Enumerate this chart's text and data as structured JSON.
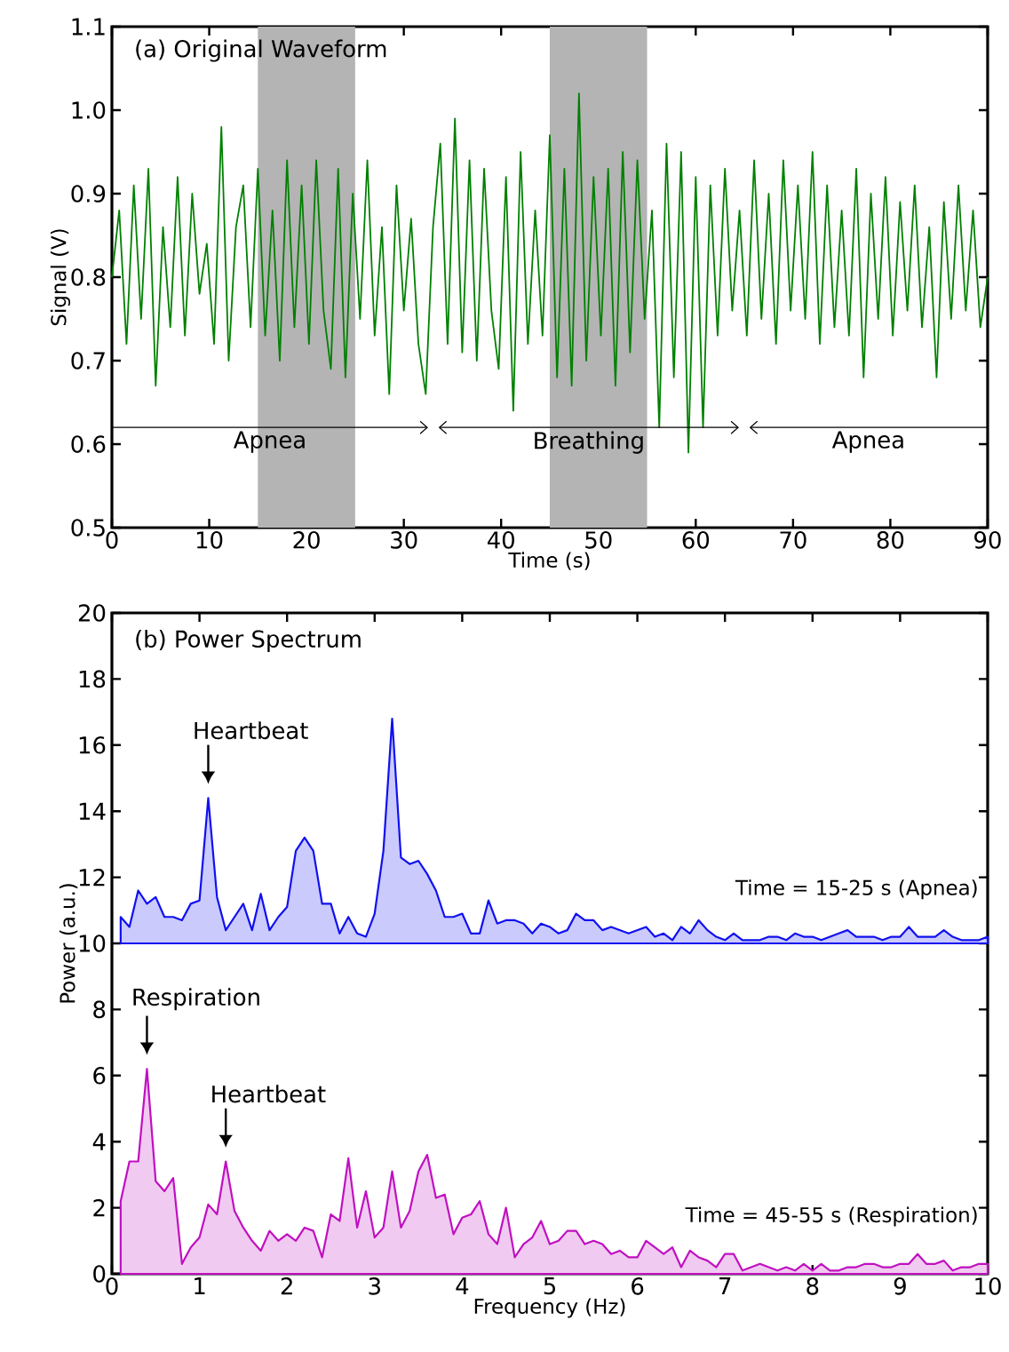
{
  "chart_data": [
    {
      "type": "line",
      "title": "(a) Original Waveform",
      "xlabel": "Time (s)",
      "ylabel": "Signal (V)",
      "x": [
        0,
        0.75,
        1.5,
        2.25,
        3,
        3.75,
        4.5,
        5.25,
        6,
        6.75,
        7.5,
        8.25,
        9,
        9.75,
        10.5,
        11.25,
        12,
        12.75,
        13.5,
        14.25,
        15,
        15.75,
        16.5,
        17.25,
        18,
        18.75,
        19.5,
        20.25,
        21,
        21.75,
        22.5,
        23.25,
        24,
        24.75,
        25.5,
        26.25,
        27,
        27.75,
        28.5,
        29.25,
        30,
        30.75,
        31.5,
        32.25,
        33,
        33.75,
        34.5,
        35.25,
        36,
        36.75,
        37.5,
        38.25,
        39,
        39.75,
        40.5,
        41.25,
        42,
        42.75,
        43.5,
        44.25,
        45,
        45.75,
        46.5,
        47.25,
        48,
        48.75,
        49.5,
        50.25,
        51,
        51.75,
        52.5,
        53.25,
        54,
        54.75,
        55.5,
        56.25,
        57,
        57.75,
        58.5,
        59.25,
        60,
        60.75,
        61.5,
        62.25,
        63,
        63.75,
        64.5,
        65.25,
        66,
        66.75,
        67.5,
        68.25,
        69,
        69.75,
        70.5,
        71.25,
        72,
        72.75,
        73.5,
        74.25,
        75,
        75.75,
        76.5,
        77.25,
        78,
        78.75,
        79.5,
        80.25,
        81,
        81.75,
        82.5,
        83.25,
        84,
        84.75,
        85.5,
        86.25,
        87,
        87.75,
        88.5,
        89.25,
        90
      ],
      "series": [
        {
          "color": "#008000",
          "values": [
            0.8,
            0.88,
            0.72,
            0.91,
            0.75,
            0.93,
            0.67,
            0.86,
            0.74,
            0.92,
            0.73,
            0.9,
            0.78,
            0.84,
            0.72,
            0.98,
            0.7,
            0.86,
            0.91,
            0.74,
            0.93,
            0.73,
            0.88,
            0.7,
            0.94,
            0.74,
            0.91,
            0.72,
            0.94,
            0.76,
            0.69,
            0.93,
            0.68,
            0.9,
            0.75,
            0.94,
            0.73,
            0.86,
            0.66,
            0.91,
            0.76,
            0.87,
            0.72,
            0.66,
            0.86,
            0.96,
            0.72,
            0.99,
            0.71,
            0.94,
            0.7,
            0.93,
            0.76,
            0.69,
            0.92,
            0.64,
            0.95,
            0.72,
            0.88,
            0.73,
            0.97,
            0.68,
            0.93,
            0.67,
            1.02,
            0.7,
            0.92,
            0.73,
            0.93,
            0.67,
            0.95,
            0.71,
            0.94,
            0.75,
            0.88,
            0.62,
            0.96,
            0.68,
            0.95,
            0.59,
            0.92,
            0.62,
            0.91,
            0.73,
            0.93,
            0.76,
            0.88,
            0.73,
            0.94,
            0.75,
            0.9,
            0.72,
            0.94,
            0.76,
            0.91,
            0.75,
            0.95,
            0.72,
            0.91,
            0.74,
            0.88,
            0.73,
            0.93,
            0.68,
            0.9,
            0.75,
            0.92,
            0.73,
            0.89,
            0.76,
            0.91,
            0.74,
            0.86,
            0.68,
            0.89,
            0.75,
            0.91,
            0.76,
            0.88,
            0.74,
            0.8
          ]
        }
      ],
      "xlim": [
        0,
        90
      ],
      "ylim": [
        0.5,
        1.1
      ],
      "xticks": [
        0,
        10,
        20,
        30,
        40,
        50,
        60,
        70,
        80,
        90
      ],
      "yticks": [
        0.5,
        0.6,
        0.7,
        0.8,
        0.9,
        {
          "value": 1.0,
          "label": "1.0"
        },
        1.1
      ],
      "bands": [
        {
          "axis": "x",
          "from": 15,
          "to": 25,
          "color": "#b4b4b4"
        },
        {
          "axis": "x",
          "from": 45,
          "to": 55,
          "color": "#b4b4b4"
        }
      ],
      "annotations": [
        "Apnea",
        "Breathing",
        "Apnea"
      ]
    },
    {
      "type": "area",
      "title": "(b) Power Spectrum",
      "xlabel": "Frequency (Hz)",
      "ylabel": "Power (a.u.)",
      "x": [
        0.1,
        0.2,
        0.3,
        0.4,
        0.5,
        0.6,
        0.7,
        0.8,
        0.9,
        1.0,
        1.1,
        1.2,
        1.3,
        1.4,
        1.5,
        1.6,
        1.7,
        1.8,
        1.9,
        2.0,
        2.1,
        2.2,
        2.3,
        2.4,
        2.5,
        2.6,
        2.7,
        2.8,
        2.9,
        3.0,
        3.1,
        3.2,
        3.3,
        3.4,
        3.5,
        3.6,
        3.7,
        3.8,
        3.9,
        4.0,
        4.1,
        4.2,
        4.3,
        4.4,
        4.5,
        4.6,
        4.7,
        4.8,
        4.9,
        5.0,
        5.1,
        5.2,
        5.3,
        5.4,
        5.5,
        5.6,
        5.7,
        5.8,
        5.9,
        6.0,
        6.1,
        6.2,
        6.3,
        6.4,
        6.5,
        6.6,
        6.7,
        6.8,
        6.9,
        7.0,
        7.1,
        7.2,
        7.3,
        7.4,
        7.5,
        7.6,
        7.7,
        7.8,
        7.9,
        8.0,
        8.1,
        8.2,
        8.3,
        8.4,
        8.5,
        8.6,
        8.7,
        8.8,
        8.9,
        9.0,
        9.1,
        9.2,
        9.3,
        9.4,
        9.5,
        9.6,
        9.7,
        9.8,
        9.9,
        10.0
      ],
      "series": [
        {
          "name": "Time = 15-25 s (Apnea)",
          "color": "#1010f0",
          "values": [
            10.8,
            10.5,
            11.6,
            11.2,
            11.4,
            10.8,
            10.8,
            10.7,
            11.2,
            11.3,
            14.4,
            11.4,
            10.4,
            10.8,
            11.2,
            10.4,
            11.5,
            10.4,
            10.8,
            11.1,
            12.8,
            13.2,
            12.8,
            11.2,
            11.2,
            10.3,
            10.8,
            10.3,
            10.2,
            10.9,
            12.8,
            16.8,
            12.6,
            12.4,
            12.5,
            12.1,
            11.6,
            10.8,
            10.8,
            10.9,
            10.3,
            10.3,
            11.3,
            10.6,
            10.7,
            10.7,
            10.6,
            10.3,
            10.6,
            10.5,
            10.3,
            10.4,
            10.9,
            10.7,
            10.7,
            10.4,
            10.5,
            10.4,
            10.3,
            10.4,
            10.5,
            10.2,
            10.3,
            10.1,
            10.5,
            10.3,
            10.7,
            10.4,
            10.2,
            10.1,
            10.3,
            10.1,
            10.1,
            10.1,
            10.2,
            10.2,
            10.1,
            10.3,
            10.2,
            10.2,
            10.1,
            10.2,
            10.3,
            10.4,
            10.2,
            10.2,
            10.2,
            10.1,
            10.2,
            10.2,
            10.5,
            10.2,
            10.2,
            10.2,
            10.4,
            10.2,
            10.1,
            10.1,
            10.1,
            10.2
          ]
        },
        {
          "name": "Time = 45-55 s (Respiration)",
          "color": "#c010c0",
          "values": [
            2.2,
            3.4,
            3.4,
            6.2,
            2.8,
            2.5,
            2.9,
            0.3,
            0.8,
            1.1,
            2.1,
            1.8,
            3.4,
            1.9,
            1.4,
            1.0,
            0.7,
            1.3,
            1.0,
            1.2,
            1.0,
            1.4,
            1.3,
            0.5,
            1.8,
            1.6,
            3.5,
            1.4,
            2.5,
            1.1,
            1.4,
            3.1,
            1.4,
            1.9,
            3.1,
            3.6,
            2.3,
            2.4,
            1.2,
            1.7,
            1.8,
            2.2,
            1.2,
            0.9,
            2.0,
            0.5,
            0.9,
            1.1,
            1.6,
            0.9,
            1.0,
            1.3,
            1.3,
            0.9,
            1.0,
            0.9,
            0.6,
            0.7,
            0.5,
            0.5,
            1.0,
            0.8,
            0.6,
            0.8,
            0.2,
            0.7,
            0.5,
            0.4,
            0.2,
            0.6,
            0.6,
            0.1,
            0.2,
            0.3,
            0.2,
            0.1,
            0.2,
            0.1,
            0.3,
            0.1,
            0.3,
            0.1,
            0.1,
            0.2,
            0.2,
            0.3,
            0.3,
            0.2,
            0.2,
            0.3,
            0.3,
            0.6,
            0.3,
            0.3,
            0.4,
            0.1,
            0.2,
            0.2,
            0.3,
            0.3
          ]
        }
      ],
      "xlim": [
        0,
        10
      ],
      "ylim": [
        0,
        20
      ],
      "xticks": [
        0,
        1,
        2,
        3,
        4,
        5,
        6,
        7,
        8,
        9,
        10
      ],
      "yticks": [
        0,
        2,
        4,
        6,
        8,
        10,
        12,
        14,
        16,
        18,
        20
      ],
      "annotations": [
        {
          "text": "Heartbeat",
          "x": 1.1,
          "y": 14.4
        },
        {
          "text": "Respiration",
          "x": 0.4,
          "y": 6.2
        },
        {
          "text": "Heartbeat",
          "x": 1.3,
          "y": 3.4
        }
      ]
    }
  ]
}
